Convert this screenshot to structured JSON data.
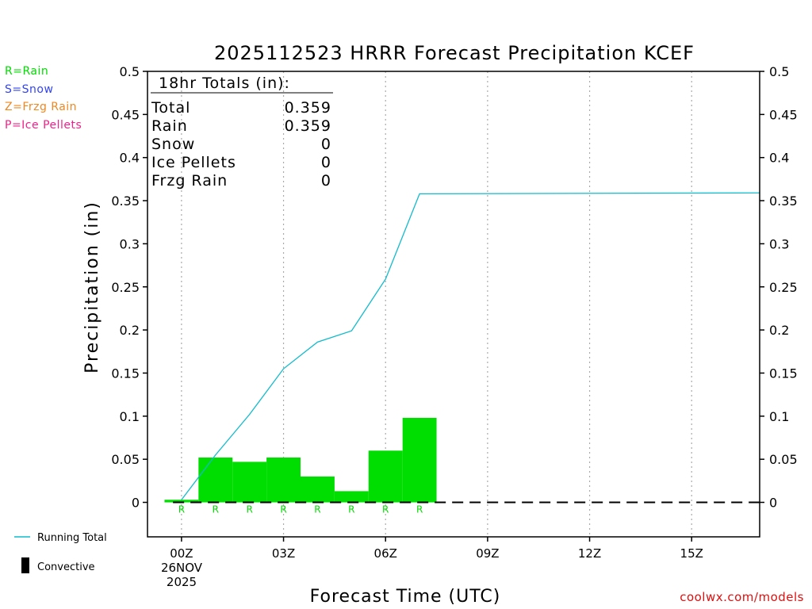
{
  "header": {
    "title": "2025112523 HRRR Forecast Precipitation KCEF"
  },
  "precip_types": [
    {
      "label": "R=Rain",
      "color": "#00dd00"
    },
    {
      "label": "S=Snow",
      "color": "#3344ee"
    },
    {
      "label": "Z=Frzg Rain",
      "color": "#ee8822"
    },
    {
      "label": "P=Ice Pellets",
      "color": "#ee2288"
    }
  ],
  "totals_box": {
    "title": "18hr Totals (in):",
    "rows": [
      {
        "label": "Total",
        "value": "0.359"
      },
      {
        "label": "Rain",
        "value": "0.359"
      },
      {
        "label": "Snow",
        "value": "0"
      },
      {
        "label": "Ice Pellets",
        "value": "0"
      },
      {
        "label": "Frzg Rain",
        "value": "0"
      }
    ]
  },
  "legend": {
    "running_total": "Running Total",
    "convective": "Convective"
  },
  "footer": {
    "site": "coolwx.com/models"
  },
  "colors": {
    "rain_bar": "#00dd00",
    "running_total_line": "#11bbcc",
    "grid": "#aaaaaa",
    "site_text": "#dd1111"
  },
  "chart_data": {
    "type": "bar",
    "title": "2025112523 HRRR Forecast Precipitation KCEF",
    "xlabel": "Forecast Time (UTC)",
    "ylabel": "Precipitation (in)",
    "xlim": [
      -1,
      17
    ],
    "ylim": [
      -0.04,
      0.5
    ],
    "yticks": [
      0,
      0.05,
      0.1,
      0.15,
      0.2,
      0.25,
      0.3,
      0.35,
      0.4,
      0.45,
      0.5
    ],
    "ytick_labels": [
      "0",
      "0.05",
      "0.1",
      "0.15",
      "0.2",
      "0.25",
      "0.3",
      "0.35",
      "0.4",
      "0.45",
      "0.5"
    ],
    "xticks": [
      {
        "x": 0,
        "label": "00Z"
      },
      {
        "x": 3,
        "label": "03Z"
      },
      {
        "x": 6,
        "label": "06Z"
      },
      {
        "x": 9,
        "label": "09Z"
      },
      {
        "x": 12,
        "label": "12Z"
      },
      {
        "x": 15,
        "label": "15Z"
      }
    ],
    "date_label": [
      "26NOV",
      "2025"
    ],
    "grid": "vertical dotted",
    "hourly_bars": {
      "x": [
        0,
        1,
        2,
        3,
        4,
        5,
        6,
        7
      ],
      "values": [
        0.003,
        0.052,
        0.047,
        0.052,
        0.03,
        0.013,
        0.06,
        0.098
      ],
      "type_codes": [
        "R",
        "R",
        "R",
        "R",
        "R",
        "R",
        "R",
        "R"
      ]
    },
    "running_total": {
      "x": [
        0,
        1,
        2,
        3,
        4,
        5,
        6,
        7,
        17
      ],
      "values": [
        0.003,
        0.055,
        0.102,
        0.155,
        0.186,
        0.199,
        0.259,
        0.358,
        0.359
      ]
    }
  }
}
